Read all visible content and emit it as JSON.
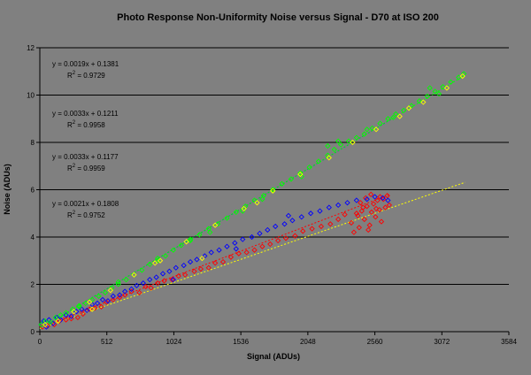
{
  "chart_data": {
    "type": "scatter",
    "title": "Photo Response Non-Uniformity Noise versus Signal - D70 at ISO 200",
    "xlabel": "Signal (ADUs)",
    "ylabel": "Noise (ADUs)",
    "xlim": [
      0,
      3584
    ],
    "ylim": [
      0,
      12
    ],
    "xticks": [
      0,
      512,
      1024,
      1536,
      2048,
      2560,
      3072,
      3584
    ],
    "yticks": [
      0,
      2,
      4,
      6,
      8,
      10,
      12
    ],
    "grid": "horizontal",
    "plot_background": "#808080",
    "series": [
      {
        "color": "#ff0000",
        "trend": {
          "slope": 0.0021,
          "intercept": 0.1808,
          "r2": 0.9752,
          "label": "y = 0.0021x + 0.1808",
          "r2_label": "R",
          "r2_value": " = 0.9752"
        },
        "x_range": [
          0,
          2680
        ],
        "points": [
          [
            20,
            0.2
          ],
          [
            60,
            0.25
          ],
          [
            110,
            0.3
          ],
          [
            150,
            0.45
          ],
          [
            200,
            0.5
          ],
          [
            240,
            0.55
          ],
          [
            290,
            0.6
          ],
          [
            330,
            0.75
          ],
          [
            380,
            0.95
          ],
          [
            420,
            1.0
          ],
          [
            470,
            1.05
          ],
          [
            510,
            1.25
          ],
          [
            560,
            1.35
          ],
          [
            610,
            1.45
          ],
          [
            650,
            1.55
          ],
          [
            700,
            1.7
          ],
          [
            760,
            1.65
          ],
          [
            810,
            1.9
          ],
          [
            850,
            1.85
          ],
          [
            900,
            2.05
          ],
          [
            950,
            2.15
          ],
          [
            1010,
            2.2
          ],
          [
            1060,
            2.35
          ],
          [
            1110,
            2.4
          ],
          [
            1180,
            2.55
          ],
          [
            1230,
            2.65
          ],
          [
            1290,
            2.7
          ],
          [
            1340,
            2.9
          ],
          [
            1400,
            2.95
          ],
          [
            1460,
            3.15
          ],
          [
            1520,
            3.3
          ],
          [
            1580,
            3.35
          ],
          [
            1640,
            3.45
          ],
          [
            1700,
            3.6
          ],
          [
            1760,
            3.7
          ],
          [
            1820,
            3.85
          ],
          [
            1880,
            3.95
          ],
          [
            1950,
            4.05
          ],
          [
            2010,
            4.25
          ],
          [
            2080,
            4.35
          ],
          [
            2150,
            4.45
          ],
          [
            2220,
            4.55
          ],
          [
            2280,
            4.75
          ],
          [
            2330,
            4.95
          ],
          [
            2380,
            4.6
          ],
          [
            2400,
            4.2
          ],
          [
            2420,
            5.0
          ],
          [
            2440,
            4.4
          ],
          [
            2460,
            5.1
          ],
          [
            2480,
            4.75
          ],
          [
            2500,
            5.3
          ],
          [
            2520,
            4.5
          ],
          [
            2535,
            5.05
          ],
          [
            2550,
            5.4
          ],
          [
            2565,
            4.85
          ],
          [
            2580,
            5.55
          ],
          [
            2595,
            5.15
          ],
          [
            2610,
            4.65
          ],
          [
            2625,
            5.6
          ],
          [
            2640,
            5.25
          ],
          [
            2655,
            5.75
          ],
          [
            2670,
            5.35
          ],
          [
            2450,
            5.45
          ],
          [
            2490,
            5.65
          ],
          [
            2530,
            5.8
          ],
          [
            2570,
            5.2
          ],
          [
            2600,
            5.7
          ],
          [
            2430,
            4.9
          ],
          [
            2470,
            5.25
          ],
          [
            2510,
            4.3
          ]
        ]
      },
      {
        "color": "#0000ff",
        "trend": {
          "slope": 0.0033,
          "intercept": 0.1177,
          "r2": 0.9959,
          "label": "y = 0.0033x + 0.1177",
          "r2_label": "R",
          "r2_value": " = 0.9959"
        },
        "x_range": [
          0,
          2680
        ],
        "points": [
          [
            10,
            0.3
          ],
          [
            30,
            0.45
          ],
          [
            50,
            0.2
          ],
          [
            70,
            0.5
          ],
          [
            100,
            0.35
          ],
          [
            130,
            0.6
          ],
          [
            160,
            0.5
          ],
          [
            200,
            0.7
          ],
          [
            240,
            0.65
          ],
          [
            280,
            0.85
          ],
          [
            320,
            0.95
          ],
          [
            360,
            0.9
          ],
          [
            400,
            1.15
          ],
          [
            440,
            1.2
          ],
          [
            480,
            1.35
          ],
          [
            520,
            1.3
          ],
          [
            560,
            1.5
          ],
          [
            610,
            1.55
          ],
          [
            650,
            1.7
          ],
          [
            700,
            1.8
          ],
          [
            740,
            1.95
          ],
          [
            790,
            2.05
          ],
          [
            840,
            2.2
          ],
          [
            890,
            2.3
          ],
          [
            940,
            2.45
          ],
          [
            990,
            2.55
          ],
          [
            1040,
            2.7
          ],
          [
            1100,
            2.8
          ],
          [
            1150,
            2.95
          ],
          [
            1200,
            3.05
          ],
          [
            1260,
            3.2
          ],
          [
            1310,
            3.35
          ],
          [
            1370,
            3.45
          ],
          [
            1430,
            3.6
          ],
          [
            1490,
            3.75
          ],
          [
            1550,
            3.9
          ],
          [
            1620,
            4.0
          ],
          [
            1680,
            4.15
          ],
          [
            1740,
            4.3
          ],
          [
            1800,
            4.45
          ],
          [
            1870,
            4.55
          ],
          [
            1930,
            4.7
          ],
          [
            2000,
            4.85
          ],
          [
            2070,
            5.0
          ],
          [
            2140,
            5.1
          ],
          [
            2210,
            5.25
          ],
          [
            2280,
            5.35
          ],
          [
            2350,
            5.45
          ],
          [
            2420,
            5.55
          ],
          [
            2500,
            5.6
          ],
          [
            2560,
            5.7
          ],
          [
            2620,
            5.65
          ],
          [
            2660,
            5.55
          ],
          [
            1020,
            2.2
          ],
          [
            1500,
            3.5
          ],
          [
            1900,
            4.9
          ]
        ]
      },
      {
        "color": "#00ff00",
        "trend": {
          "slope": 0.0033,
          "intercept": 0.1211,
          "r2": 0.9958,
          "label": "y = 0.0033x + 0.1211",
          "r2_label": "R",
          "r2_value": " = 0.9958"
        },
        "x_range": [
          0,
          3250
        ],
        "points": [
          [
            10,
            0.3
          ],
          [
            40,
            0.45
          ],
          [
            80,
            0.4
          ],
          [
            120,
            0.6
          ],
          [
            160,
            0.7
          ],
          [
            200,
            0.8
          ],
          [
            250,
            0.95
          ],
          [
            300,
            1.05
          ],
          [
            350,
            1.2
          ],
          [
            400,
            1.35
          ],
          [
            450,
            1.5
          ],
          [
            500,
            1.65
          ],
          [
            550,
            1.85
          ],
          [
            600,
            2.0
          ],
          [
            660,
            2.2
          ],
          [
            720,
            2.4
          ],
          [
            780,
            2.6
          ],
          [
            840,
            2.85
          ],
          [
            900,
            3.0
          ],
          [
            960,
            3.2
          ],
          [
            1020,
            3.45
          ],
          [
            1080,
            3.65
          ],
          [
            1150,
            3.85
          ],
          [
            1220,
            4.1
          ],
          [
            1290,
            4.35
          ],
          [
            1360,
            4.55
          ],
          [
            1430,
            4.8
          ],
          [
            1500,
            5.05
          ],
          [
            1570,
            5.3
          ],
          [
            1640,
            5.55
          ],
          [
            1710,
            5.75
          ],
          [
            1780,
            6.0
          ],
          [
            1850,
            6.25
          ],
          [
            1920,
            6.45
          ],
          [
            1990,
            6.7
          ],
          [
            2060,
            6.95
          ],
          [
            2130,
            7.2
          ],
          [
            2200,
            7.45
          ],
          [
            2250,
            7.7
          ],
          [
            2300,
            7.9
          ],
          [
            2360,
            8.05
          ],
          [
            2420,
            8.2
          ],
          [
            2480,
            8.35
          ],
          [
            2540,
            8.6
          ],
          [
            2600,
            8.8
          ],
          [
            2660,
            9.0
          ],
          [
            2720,
            9.2
          ],
          [
            2780,
            9.35
          ],
          [
            2840,
            9.55
          ],
          [
            2900,
            9.75
          ],
          [
            2960,
            9.95
          ],
          [
            3020,
            10.15
          ],
          [
            3080,
            10.35
          ],
          [
            3140,
            10.55
          ],
          [
            3200,
            10.75
          ],
          [
            3240,
            10.9
          ],
          [
            2200,
            7.85
          ],
          [
            2280,
            8.05
          ],
          [
            2000,
            6.55
          ],
          [
            1700,
            5.6
          ],
          [
            1300,
            4.2
          ],
          [
            900,
            3.1
          ],
          [
            600,
            2.1
          ],
          [
            300,
            1.1
          ],
          [
            2980,
            10.3
          ],
          [
            3050,
            10.05
          ],
          [
            2700,
            9.05
          ],
          [
            2500,
            8.55
          ],
          [
            1550,
            5.1
          ],
          [
            1150,
            3.9
          ]
        ]
      },
      {
        "color": "#ffff00",
        "trend": {
          "slope": 0.0019,
          "intercept": 0.1381,
          "r2": 0.9729,
          "label": "y = 0.0019x + 0.1381",
          "r2_label": "R",
          "r2_value": " = 0.9729"
        },
        "x_range": [
          0,
          3250
        ],
        "points": [
          [
            40,
            0.3
          ],
          [
            140,
            0.45
          ],
          [
            260,
            0.85
          ],
          [
            380,
            1.25
          ],
          [
            540,
            1.75
          ],
          [
            720,
            2.4
          ],
          [
            920,
            3.0
          ],
          [
            1120,
            3.8
          ],
          [
            1340,
            4.5
          ],
          [
            1560,
            5.2
          ],
          [
            1780,
            5.95
          ],
          [
            1990,
            6.65
          ],
          [
            2210,
            7.35
          ],
          [
            2390,
            8.0
          ],
          [
            2570,
            8.55
          ],
          [
            2750,
            9.1
          ],
          [
            2930,
            9.7
          ],
          [
            3110,
            10.3
          ],
          [
            3230,
            10.8
          ],
          [
            1240,
            3.1
          ],
          [
            1660,
            5.45
          ],
          [
            2820,
            9.45
          ],
          [
            400,
            0.95
          ],
          [
            880,
            2.9
          ]
        ]
      }
    ]
  }
}
